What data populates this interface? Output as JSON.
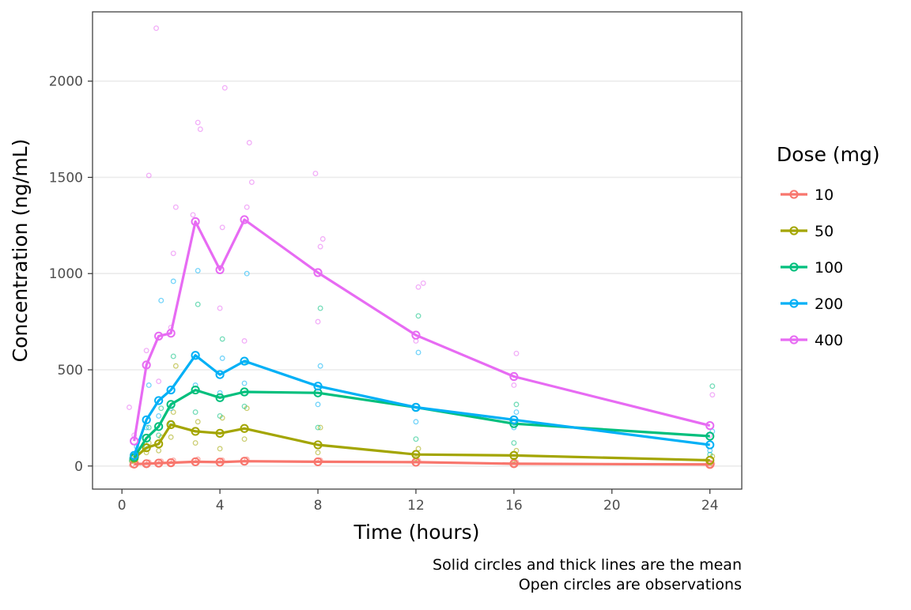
{
  "chart_data": {
    "type": "line",
    "xlabel": "Time (hours)",
    "ylabel": "Concentration (ng/mL)",
    "xlim": [
      -1.2,
      25.3
    ],
    "ylim": [
      -120,
      2360
    ],
    "xticks": [
      0,
      4,
      8,
      12,
      16,
      20,
      24
    ],
    "yticks": [
      0,
      500,
      1000,
      1500,
      2000
    ],
    "grid": "horizontal major",
    "legend_position": "right",
    "legend_title": "Dose (mg)",
    "caption": [
      "Solid circles and thick lines are the mean",
      "Open circles are observations"
    ],
    "series": [
      {
        "name": "10",
        "color": "#F8766D",
        "mean": [
          [
            0.5,
            10
          ],
          [
            1,
            12
          ],
          [
            1.5,
            15
          ],
          [
            2,
            17
          ],
          [
            3,
            22
          ],
          [
            4,
            20
          ],
          [
            5,
            25
          ],
          [
            8,
            22
          ],
          [
            12,
            20
          ],
          [
            16,
            12
          ],
          [
            24,
            8
          ]
        ],
        "obs": [
          [
            0.4,
            5
          ],
          [
            0.6,
            15
          ],
          [
            1,
            8
          ],
          [
            1.1,
            20
          ],
          [
            1.5,
            10
          ],
          [
            1.6,
            25
          ],
          [
            2,
            12
          ],
          [
            2.1,
            30
          ],
          [
            3,
            15
          ],
          [
            3.1,
            35
          ],
          [
            4,
            12
          ],
          [
            4.1,
            30
          ],
          [
            5,
            18
          ],
          [
            5.1,
            35
          ],
          [
            8,
            15
          ],
          [
            8.1,
            30
          ],
          [
            12,
            12
          ],
          [
            12.1,
            28
          ],
          [
            16,
            8
          ],
          [
            16.1,
            20
          ],
          [
            24,
            5
          ],
          [
            24.1,
            12
          ]
        ]
      },
      {
        "name": "50",
        "color": "#A3A500",
        "mean": [
          [
            0.5,
            40
          ],
          [
            1,
            95
          ],
          [
            1.5,
            115
          ],
          [
            2,
            215
          ],
          [
            3,
            180
          ],
          [
            4,
            170
          ],
          [
            5,
            195
          ],
          [
            8,
            110
          ],
          [
            12,
            60
          ],
          [
            16,
            55
          ],
          [
            24,
            30
          ]
        ],
        "obs": [
          [
            0.4,
            25
          ],
          [
            0.6,
            50
          ],
          [
            1,
            70
          ],
          [
            1.1,
            120
          ],
          [
            1.5,
            80
          ],
          [
            1.6,
            150
          ],
          [
            2,
            150
          ],
          [
            2.1,
            280
          ],
          [
            2.2,
            520
          ],
          [
            3,
            120
          ],
          [
            3.1,
            230
          ],
          [
            4,
            90
          ],
          [
            4.1,
            250
          ],
          [
            5,
            140
          ],
          [
            5.1,
            300
          ],
          [
            8,
            70
          ],
          [
            8.1,
            200
          ],
          [
            12,
            40
          ],
          [
            12.1,
            90
          ],
          [
            16,
            30
          ],
          [
            16.1,
            80
          ],
          [
            24,
            15
          ],
          [
            24.1,
            50
          ]
        ]
      },
      {
        "name": "100",
        "color": "#00BF7D",
        "mean": [
          [
            0.5,
            45
          ],
          [
            1,
            145
          ],
          [
            1.5,
            205
          ],
          [
            2,
            320
          ],
          [
            3,
            395
          ],
          [
            4,
            355
          ],
          [
            5,
            385
          ],
          [
            8,
            380
          ],
          [
            12,
            305
          ],
          [
            16,
            220
          ],
          [
            24,
            155
          ]
        ],
        "obs": [
          [
            0.4,
            30
          ],
          [
            0.6,
            70
          ],
          [
            1,
            100
          ],
          [
            1.1,
            200
          ],
          [
            1.5,
            160
          ],
          [
            1.6,
            300
          ],
          [
            2,
            220
          ],
          [
            2.1,
            570
          ],
          [
            3,
            280
          ],
          [
            3.1,
            840
          ],
          [
            4,
            260
          ],
          [
            4.1,
            660
          ],
          [
            5,
            310
          ],
          [
            5.1,
            540
          ],
          [
            8,
            200
          ],
          [
            8.1,
            820
          ],
          [
            12,
            140
          ],
          [
            12.1,
            780
          ],
          [
            16,
            120
          ],
          [
            16.1,
            320
          ],
          [
            24,
            60
          ],
          [
            24.1,
            415
          ]
        ]
      },
      {
        "name": "200",
        "color": "#00B0F6",
        "mean": [
          [
            0.5,
            55
          ],
          [
            1,
            240
          ],
          [
            1.5,
            340
          ],
          [
            2,
            395
          ],
          [
            3,
            575
          ],
          [
            4,
            475
          ],
          [
            5,
            545
          ],
          [
            8,
            415
          ],
          [
            12,
            305
          ],
          [
            16,
            240
          ],
          [
            24,
            110
          ]
        ],
        "obs": [
          [
            0.4,
            40
          ],
          [
            0.6,
            100
          ],
          [
            1,
            200
          ],
          [
            1.1,
            420
          ],
          [
            1.5,
            260
          ],
          [
            1.6,
            860
          ],
          [
            2,
            300
          ],
          [
            2.1,
            960
          ],
          [
            3,
            420
          ],
          [
            3.1,
            1015
          ],
          [
            4,
            380
          ],
          [
            4.1,
            560
          ],
          [
            5,
            430
          ],
          [
            5.1,
            1000
          ],
          [
            8,
            320
          ],
          [
            8.1,
            520
          ],
          [
            12,
            230
          ],
          [
            12.1,
            590
          ],
          [
            16,
            200
          ],
          [
            16.1,
            280
          ],
          [
            24,
            80
          ],
          [
            24.1,
            180
          ]
        ]
      },
      {
        "name": "400",
        "color": "#E76BF3",
        "mean": [
          [
            0.5,
            130
          ],
          [
            1,
            525
          ],
          [
            1.5,
            675
          ],
          [
            2,
            690
          ],
          [
            3,
            1270
          ],
          [
            4,
            1020
          ],
          [
            5,
            1280
          ],
          [
            8,
            1005
          ],
          [
            12,
            680
          ],
          [
            16,
            465
          ],
          [
            24,
            210
          ]
        ],
        "obs": [
          [
            0.3,
            305
          ],
          [
            0.5,
            160
          ],
          [
            1,
            600
          ],
          [
            1.1,
            1510
          ],
          [
            1.5,
            440
          ],
          [
            1.4,
            2275
          ],
          [
            2,
            720
          ],
          [
            2.1,
            1105
          ],
          [
            2.2,
            1345
          ],
          [
            2.9,
            1305
          ],
          [
            3.1,
            1785
          ],
          [
            3.2,
            1750
          ],
          [
            4,
            820
          ],
          [
            4.1,
            1240
          ],
          [
            4.2,
            1965
          ],
          [
            5,
            650
          ],
          [
            5.1,
            1345
          ],
          [
            5.2,
            1680
          ],
          [
            5.3,
            1475
          ],
          [
            8,
            750
          ],
          [
            7.9,
            1520
          ],
          [
            8.1,
            1140
          ],
          [
            8.2,
            1180
          ],
          [
            12,
            650
          ],
          [
            12.1,
            930
          ],
          [
            12.3,
            950
          ],
          [
            16,
            420
          ],
          [
            16.1,
            585
          ],
          [
            24,
            160
          ],
          [
            24.1,
            370
          ]
        ]
      }
    ]
  }
}
